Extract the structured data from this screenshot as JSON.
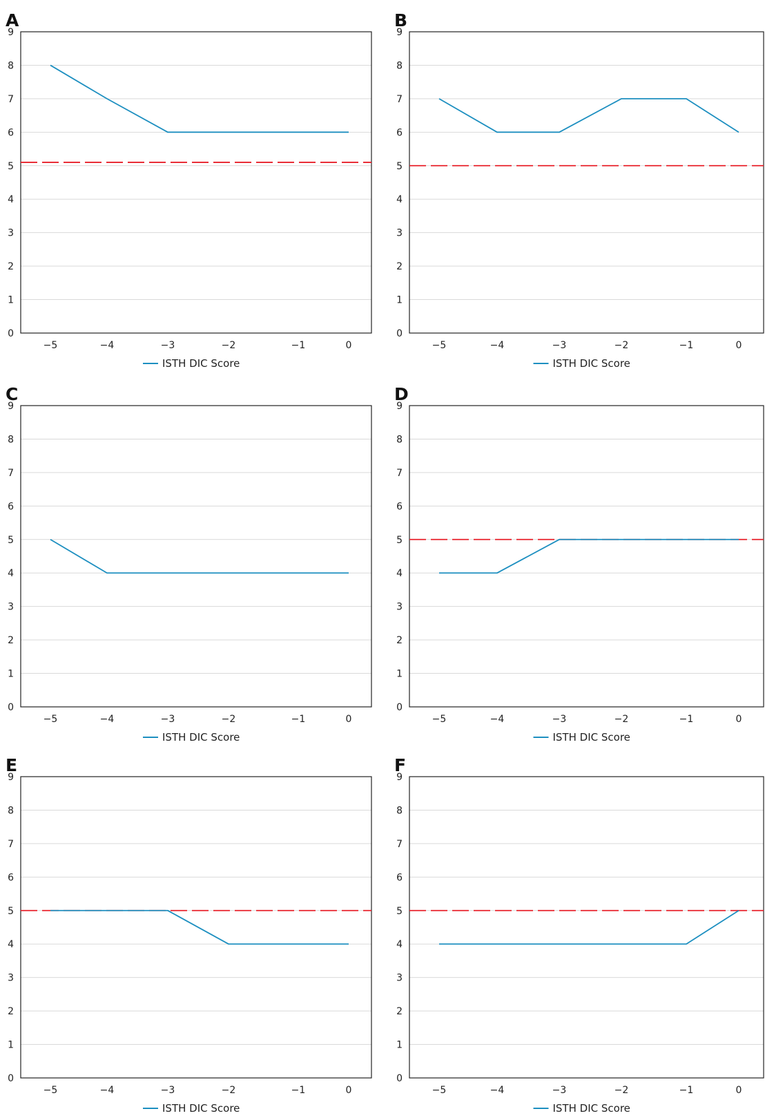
{
  "legend_label": "ISTH DIC Score",
  "colors": {
    "series": "#1d8fc0",
    "threshold": "#e8202a",
    "grid": "#d9d9d9",
    "axis": "#222222"
  },
  "chart_data": [
    {
      "panel": "A",
      "type": "line",
      "x": [
        -5,
        -4,
        -3,
        -2,
        -1,
        0
      ],
      "xticks": [
        "−5",
        "−4",
        "−3",
        "−2",
        "−1",
        "0"
      ],
      "ylim": [
        0,
        9
      ],
      "yticks": [
        "0",
        "1",
        "2",
        "3",
        "4",
        "5",
        "6",
        "7",
        "8",
        "9"
      ],
      "series": [
        {
          "name": "ISTH DIC Score",
          "values": [
            8,
            7,
            6,
            6,
            6,
            6
          ]
        }
      ],
      "threshold": 5.1,
      "legend": "bottom-center",
      "grid": true
    },
    {
      "panel": "B",
      "type": "line",
      "x": [
        -5,
        -4,
        -3,
        -2,
        -1,
        0
      ],
      "xticks": [
        "−5",
        "−4",
        "−3",
        "−2",
        "−1",
        "0"
      ],
      "ylim": [
        0,
        9
      ],
      "yticks": [
        "0",
        "1",
        "2",
        "3",
        "4",
        "5",
        "6",
        "7",
        "8",
        "9"
      ],
      "series": [
        {
          "name": "ISTH DIC Score",
          "values": [
            7,
            6,
            6,
            7,
            7,
            6
          ]
        }
      ],
      "threshold": 5.0,
      "legend": "bottom-center",
      "grid": true
    },
    {
      "panel": "C",
      "type": "line",
      "x": [
        -5,
        -4,
        -3,
        -2,
        -1,
        0
      ],
      "xticks": [
        "−5",
        "−4",
        "−3",
        "−2",
        "−1",
        "0"
      ],
      "ylim": [
        0,
        9
      ],
      "yticks": [
        "0",
        "1",
        "2",
        "3",
        "4",
        "5",
        "6",
        "7",
        "8",
        "9"
      ],
      "series": [
        {
          "name": "ISTH DIC Score",
          "values": [
            5,
            4,
            4,
            4,
            4,
            4
          ]
        }
      ],
      "threshold": null,
      "legend": "bottom-center",
      "grid": true
    },
    {
      "panel": "D",
      "type": "line",
      "x": [
        -5,
        -4,
        -3,
        -2,
        -1,
        0
      ],
      "xticks": [
        "−5",
        "−4",
        "−3",
        "−2",
        "−1",
        "0"
      ],
      "ylim": [
        0,
        9
      ],
      "yticks": [
        "0",
        "1",
        "2",
        "3",
        "4",
        "5",
        "6",
        "7",
        "8",
        "9"
      ],
      "series": [
        {
          "name": "ISTH DIC Score",
          "values": [
            4,
            4,
            5,
            5,
            5,
            5
          ]
        }
      ],
      "threshold": 5.0,
      "legend": "bottom-center",
      "grid": true
    },
    {
      "panel": "E",
      "type": "line",
      "x": [
        -5,
        -4,
        -3,
        -2,
        -1,
        0
      ],
      "xticks": [
        "−5",
        "−4",
        "−3",
        "−2",
        "−1",
        "0"
      ],
      "ylim": [
        0,
        9
      ],
      "yticks": [
        "0",
        "1",
        "2",
        "3",
        "4",
        "5",
        "6",
        "7",
        "8",
        "9"
      ],
      "series": [
        {
          "name": "ISTH DIC Score",
          "values": [
            5,
            5,
            5,
            4,
            4,
            4
          ]
        }
      ],
      "threshold": 5.0,
      "legend": "bottom-center",
      "grid": true
    },
    {
      "panel": "F",
      "type": "line",
      "x": [
        -5,
        -4,
        -3,
        -2,
        -1,
        0
      ],
      "xticks": [
        "−5",
        "−4",
        "−3",
        "−2",
        "−1",
        "0"
      ],
      "ylim": [
        0,
        9
      ],
      "yticks": [
        "0",
        "1",
        "2",
        "3",
        "4",
        "5",
        "6",
        "7",
        "8",
        "9"
      ],
      "series": [
        {
          "name": "ISTH DIC Score",
          "values": [
            4,
            4,
            4,
            4,
            4,
            5
          ]
        }
      ],
      "threshold": 5.0,
      "legend": "bottom-center",
      "grid": true
    }
  ]
}
